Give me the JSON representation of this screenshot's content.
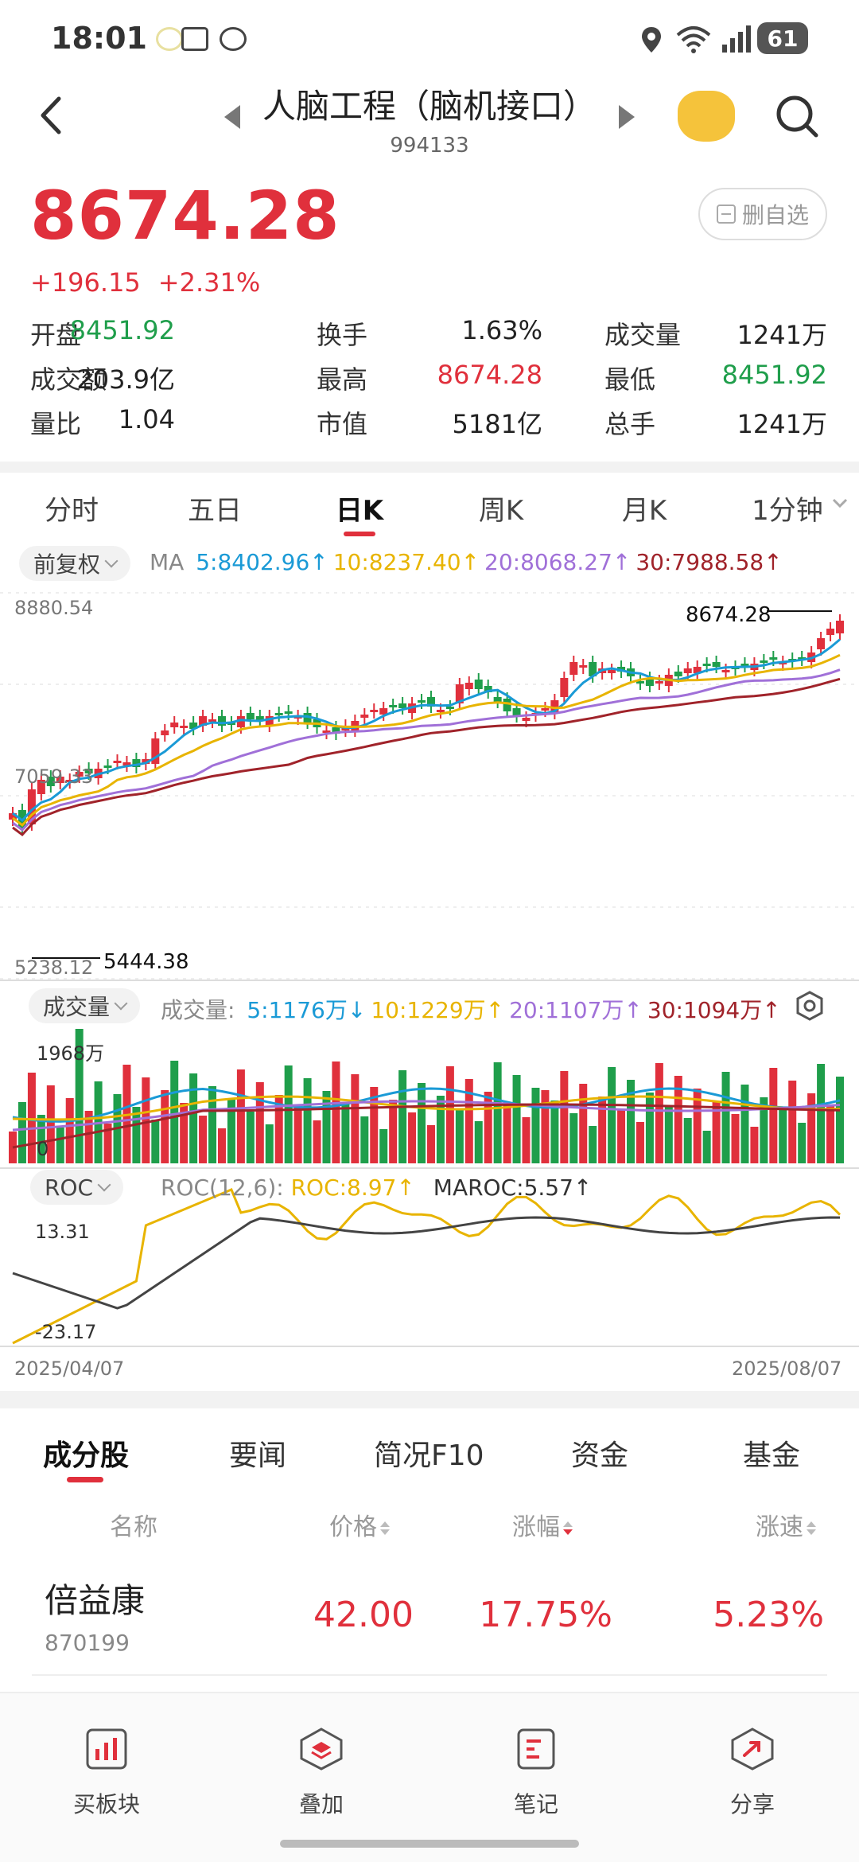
{
  "status_bar": {
    "time": "18:01",
    "battery": "61"
  },
  "header": {
    "title": "人脑工程（脑机接口）",
    "code": "994133"
  },
  "quote": {
    "price": "8674.28",
    "change": "+196.15",
    "change_pct": "+2.31%",
    "remove_label": "删自选",
    "stats": [
      [
        {
          "label": "开盘",
          "value": "8451.92",
          "color": "green"
        },
        {
          "label": "换手",
          "value": "1.63%",
          "color": "black"
        },
        {
          "label": "成交量",
          "value": "1241万",
          "color": "black"
        }
      ],
      [
        {
          "label": "成交额",
          "value": "203.9亿",
          "color": "black"
        },
        {
          "label": "最高",
          "value": "8674.28",
          "color": "red"
        },
        {
          "label": "最低",
          "value": "8451.92",
          "color": "green"
        }
      ],
      [
        {
          "label": "量比",
          "value": "1.04",
          "color": "black"
        },
        {
          "label": "市值",
          "value": "5181亿",
          "color": "black"
        },
        {
          "label": "总手",
          "value": "1241万",
          "color": "black"
        }
      ]
    ]
  },
  "period_tabs": [
    "分时",
    "五日",
    "日K",
    "周K",
    "月K",
    "1分钟"
  ],
  "kline": {
    "adjust_label": "前复权",
    "ma_label": "MA",
    "ma": [
      {
        "text": "5:8402.96↑",
        "color": "#1a9ad6"
      },
      {
        "text": "10:8237.40↑",
        "color": "#e8b400"
      },
      {
        "text": "20:8068.27↑",
        "color": "#a070d8"
      },
      {
        "text": "30:7988.58↑",
        "color": "#a0232a"
      }
    ],
    "y_top": "8880.54",
    "y_mid": "7059.33",
    "y_bottom": "5238.12",
    "max_label": "8674.28",
    "min_label": "5444.38"
  },
  "volume": {
    "label": "成交量",
    "title": "成交量:",
    "ma": [
      {
        "text": "5:1176万↓",
        "color": "#1a9ad6"
      },
      {
        "text": "10:1229万↑",
        "color": "#e8b400"
      },
      {
        "text": "20:1107万↑",
        "color": "#a070d8"
      },
      {
        "text": "30:1094万↑",
        "color": "#a0232a"
      }
    ],
    "y_top": "1968万",
    "y_bottom": "0"
  },
  "roc": {
    "label": "ROC",
    "params": "ROC(12,6):",
    "roc_value": "ROC:8.97↑",
    "maroc_value": "MAROC:5.57↑",
    "y_top": "13.31",
    "y_bottom": "-23.17",
    "date_start": "2025/04/07",
    "date_end": "2025/08/07"
  },
  "bottom_tabs": [
    "成分股",
    "要闻",
    "简况F10",
    "资金",
    "基金"
  ],
  "table": {
    "headers": [
      "名称",
      "价格",
      "涨幅",
      "涨速"
    ],
    "rows": [
      {
        "name": "倍益康",
        "code": "870199",
        "price": "42.00",
        "pct": "17.75%",
        "speed": "5.23%"
      }
    ]
  },
  "nav": [
    "买板块",
    "叠加",
    "笔记",
    "分享"
  ],
  "colors": {
    "up": "#e0303c",
    "down": "#1f9e4b"
  }
}
